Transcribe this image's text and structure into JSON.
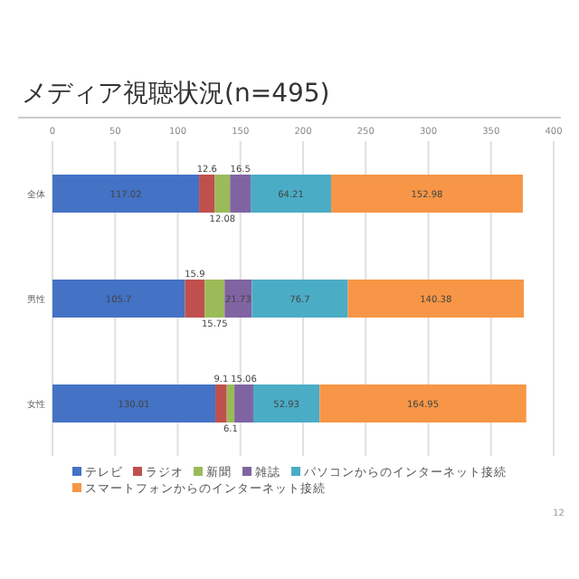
{
  "chart_data": {
    "type": "bar",
    "orientation": "horizontal",
    "stacked": true,
    "title": "メディア視聴状況(n=495)",
    "categories": [
      "全体",
      "男性",
      "女性"
    ],
    "xlim": [
      0,
      400
    ],
    "xticks": [
      0,
      50,
      100,
      150,
      200,
      250,
      300,
      350,
      400
    ],
    "grid": "x",
    "legend": "bottom",
    "data_labels": true,
    "series": [
      {
        "name": "テレビ",
        "color": "#4472c4",
        "values": [
          117.02,
          105.7,
          130.01
        ]
      },
      {
        "name": "ラジオ",
        "color": "#c0504d",
        "values": [
          12.6,
          15.9,
          9.1
        ]
      },
      {
        "name": "新聞",
        "color": "#9bbb59",
        "values": [
          12.08,
          15.75,
          6.1
        ]
      },
      {
        "name": "雑誌",
        "color": "#8064a2",
        "values": [
          16.5,
          21.73,
          15.06
        ]
      },
      {
        "name": "パソコンからのインターネット接続",
        "color": "#4bacc6",
        "values": [
          64.21,
          76.7,
          52.93
        ]
      },
      {
        "name": "スマートフォンからのインターネット接続",
        "color": "#f79646",
        "values": [
          152.98,
          140.38,
          164.95
        ]
      }
    ],
    "annotations": [
      "12"
    ]
  }
}
